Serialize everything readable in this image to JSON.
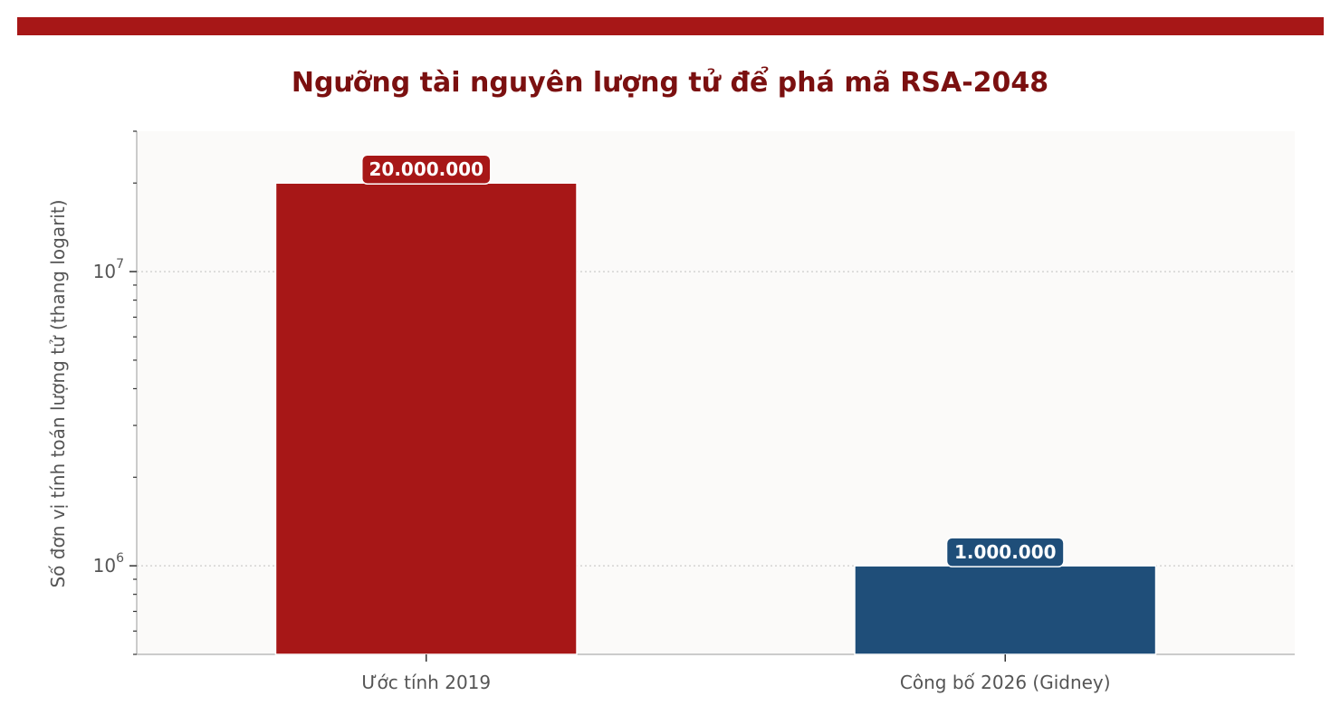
{
  "chart_data": {
    "type": "bar",
    "title": "Ngưỡng tài nguyên lượng tử để phá mã RSA-2048",
    "ylabel": "Số đơn vị tính toán lượng tử (thang logarit)",
    "xlabel": "",
    "yscale": "log",
    "ylim": [
      500000,
      30000000
    ],
    "yticks": [
      1000000,
      10000000
    ],
    "ytick_labels": [
      {
        "base": "10",
        "exp": "6"
      },
      {
        "base": "10",
        "exp": "7"
      }
    ],
    "grid": "horizontal-dotted",
    "categories": [
      "Ước tính 2019",
      "Công bố 2026 (Gidney)"
    ],
    "values": [
      20000000,
      1000000
    ],
    "data_labels": [
      "20.000.000",
      "1.000.000"
    ],
    "colors": [
      "#a71717",
      "#1f4e79"
    ]
  },
  "colors": {
    "accent_bar": "#a71717",
    "title": "#7b1010",
    "plot_background": "#fbfaf9"
  }
}
